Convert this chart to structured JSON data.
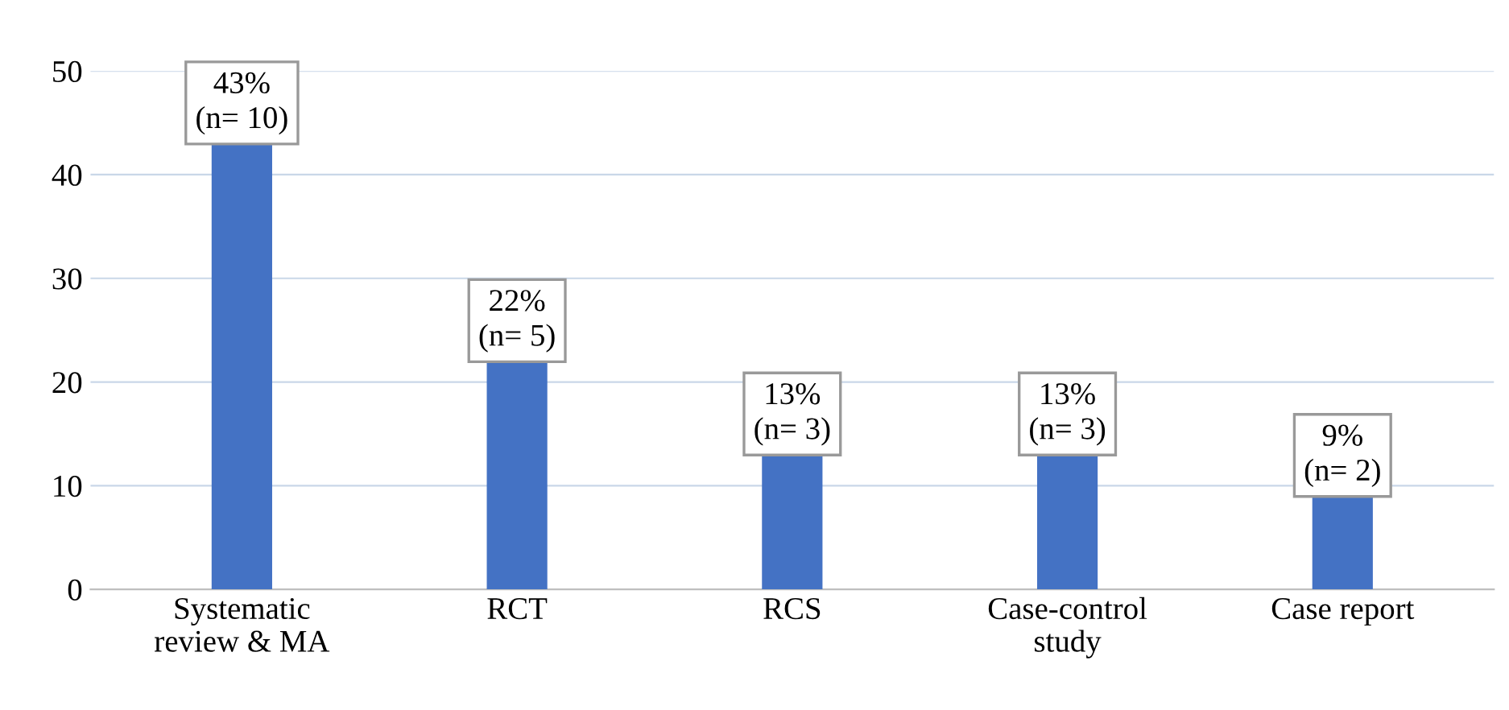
{
  "chart_data": {
    "type": "bar",
    "categories": [
      "Systematic\nreview & MA",
      "RCT",
      "RCS",
      "Case-control\nstudy",
      "Case report"
    ],
    "values": [
      43,
      22,
      13,
      13,
      9
    ],
    "value_labels": [
      "43%\n(n= 10)",
      "22%\n(n= 5)",
      "13%\n(n= 3)",
      "13%\n(n= 3)",
      "9%\n(n= 2)"
    ],
    "color": "#4472c4",
    "ylim": [
      0,
      50
    ],
    "yticks": [
      0,
      10,
      20,
      30,
      40,
      50
    ],
    "grid": "y",
    "legend": false
  }
}
